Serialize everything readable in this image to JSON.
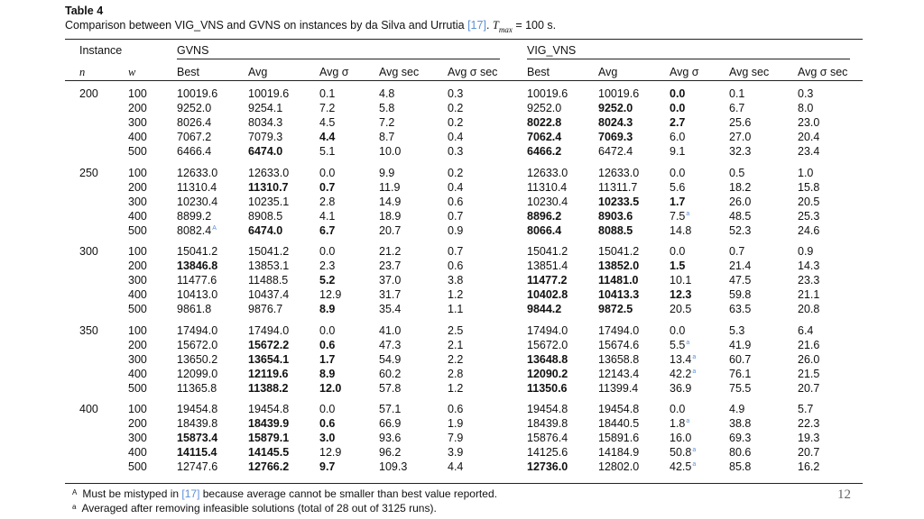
{
  "caption": {
    "label": "Table 4",
    "text_before_ref": "Comparison between VIG_VNS and GVNS on instances by da Silva and Urrutia ",
    "ref": "[17]",
    "text_after_ref": ". ",
    "tmax_symbol": "T",
    "tmax_sub": "max",
    "tmax_value": " = 100 s."
  },
  "headers": {
    "instance": "Instance",
    "gvns": "GVNS",
    "vig_vns": "VIG_VNS",
    "n": "n",
    "w": "w",
    "best": "Best",
    "avg": "Avg",
    "avg_sigma": "Avg σ",
    "avg_sec": "Avg sec",
    "avg_sigma_sec": "Avg σ sec"
  },
  "groups": [
    {
      "n": "200",
      "rows": [
        {
          "w": "100",
          "gb": "10019.6",
          "ga": "10019.6",
          "gs": "0.1",
          "gt": "4.8",
          "gst": "0.3",
          "vb": "10019.6",
          "va": "10019.6",
          "vs": "0.0",
          "vt": "0.1",
          "vst": "0.3",
          "bold": [
            "vs"
          ]
        },
        {
          "w": "200",
          "gb": "9252.0",
          "ga": "9254.1",
          "gs": "7.2",
          "gt": "5.8",
          "gst": "0.2",
          "vb": "9252.0",
          "va": "9252.0",
          "vs": "0.0",
          "vt": "6.7",
          "vst": "8.0",
          "bold": [
            "va",
            "vs"
          ]
        },
        {
          "w": "300",
          "gb": "8026.4",
          "ga": "8034.3",
          "gs": "4.5",
          "gt": "7.2",
          "gst": "0.2",
          "vb": "8022.8",
          "va": "8024.3",
          "vs": "2.7",
          "vt": "25.6",
          "vst": "23.0",
          "bold": [
            "vb",
            "va",
            "vs"
          ]
        },
        {
          "w": "400",
          "gb": "7067.2",
          "ga": "7079.3",
          "gs": "4.4",
          "gt": "8.7",
          "gst": "0.4",
          "vb": "7062.4",
          "va": "7069.3",
          "vs": "6.0",
          "vt": "27.0",
          "vst": "20.4",
          "bold": [
            "gs",
            "vb",
            "va"
          ]
        },
        {
          "w": "500",
          "gb": "6466.4",
          "ga": "6474.0",
          "gs": "5.1",
          "gt": "10.0",
          "gst": "0.3",
          "vb": "6466.2",
          "va": "6472.4",
          "vs": "9.1",
          "vt": "32.3",
          "vst": "23.4",
          "bold": [
            "ga",
            "vb"
          ]
        }
      ]
    },
    {
      "n": "250",
      "rows": [
        {
          "w": "100",
          "gb": "12633.0",
          "ga": "12633.0",
          "gs": "0.0",
          "gt": "9.9",
          "gst": "0.2",
          "vb": "12633.0",
          "va": "12633.0",
          "vs": "0.0",
          "vt": "0.5",
          "vst": "1.0",
          "bold": []
        },
        {
          "w": "200",
          "gb": "11310.4",
          "ga": "11310.7",
          "gs": "0.7",
          "gt": "11.9",
          "gst": "0.4",
          "vb": "11310.4",
          "va": "11311.7",
          "vs": "5.6",
          "vt": "18.2",
          "vst": "15.8",
          "bold": [
            "ga",
            "gs"
          ]
        },
        {
          "w": "300",
          "gb": "10230.4",
          "ga": "10235.1",
          "gs": "2.8",
          "gt": "14.9",
          "gst": "0.6",
          "vb": "10230.4",
          "va": "10233.5",
          "vs": "1.7",
          "vt": "26.0",
          "vst": "20.5",
          "bold": [
            "va",
            "vs"
          ]
        },
        {
          "w": "400",
          "gb": "8899.2",
          "ga": "8908.5",
          "gs": "4.1",
          "gt": "18.9",
          "gst": "0.7",
          "vb": "8896.2",
          "va": "8903.6",
          "vs": "7.5",
          "vt": "48.5",
          "vst": "25.3",
          "bold": [
            "vb",
            "va"
          ],
          "mark": {
            "vs": "a"
          }
        },
        {
          "w": "500",
          "gb": "8082.4",
          "ga": "6474.0",
          "gs": "6.7",
          "gt": "20.7",
          "gst": "0.9",
          "vb": "8066.4",
          "va": "8088.5",
          "vs": "14.8",
          "vt": "52.3",
          "vst": "24.6",
          "bold": [
            "ga",
            "gs",
            "vb",
            "va"
          ],
          "mark": {
            "gb": "A"
          }
        }
      ]
    },
    {
      "n": "300",
      "rows": [
        {
          "w": "100",
          "gb": "15041.2",
          "ga": "15041.2",
          "gs": "0.0",
          "gt": "21.2",
          "gst": "0.7",
          "vb": "15041.2",
          "va": "15041.2",
          "vs": "0.0",
          "vt": "0.7",
          "vst": "0.9",
          "bold": []
        },
        {
          "w": "200",
          "gb": "13846.8",
          "ga": "13853.1",
          "gs": "2.3",
          "gt": "23.7",
          "gst": "0.6",
          "vb": "13851.4",
          "va": "13852.0",
          "vs": "1.5",
          "vt": "21.4",
          "vst": "14.3",
          "bold": [
            "gb",
            "va",
            "vs"
          ]
        },
        {
          "w": "300",
          "gb": "11477.6",
          "ga": "11488.5",
          "gs": "5.2",
          "gt": "37.0",
          "gst": "3.8",
          "vb": "11477.2",
          "va": "11481.0",
          "vs": "10.1",
          "vt": "47.5",
          "vst": "23.3",
          "bold": [
            "gs",
            "vb",
            "va"
          ]
        },
        {
          "w": "400",
          "gb": "10413.0",
          "ga": "10437.4",
          "gs": "12.9",
          "gt": "31.7",
          "gst": "1.2",
          "vb": "10402.8",
          "va": "10413.3",
          "vs": "12.3",
          "vt": "59.8",
          "vst": "21.1",
          "bold": [
            "vb",
            "va",
            "vs"
          ]
        },
        {
          "w": "500",
          "gb": "9861.8",
          "ga": "9876.7",
          "gs": "8.9",
          "gt": "35.4",
          "gst": "1.1",
          "vb": "9844.2",
          "va": "9872.5",
          "vs": "20.5",
          "vt": "63.5",
          "vst": "20.8",
          "bold": [
            "gs",
            "vb",
            "va"
          ]
        }
      ]
    },
    {
      "n": "350",
      "rows": [
        {
          "w": "100",
          "gb": "17494.0",
          "ga": "17494.0",
          "gs": "0.0",
          "gt": "41.0",
          "gst": "2.5",
          "vb": "17494.0",
          "va": "17494.0",
          "vs": "0.0",
          "vt": "5.3",
          "vst": "6.4",
          "bold": []
        },
        {
          "w": "200",
          "gb": "15672.0",
          "ga": "15672.2",
          "gs": "0.6",
          "gt": "47.3",
          "gst": "2.1",
          "vb": "15672.0",
          "va": "15674.6",
          "vs": "5.5",
          "vt": "41.9",
          "vst": "21.6",
          "bold": [
            "ga",
            "gs"
          ],
          "mark": {
            "vs": "a"
          }
        },
        {
          "w": "300",
          "gb": "13650.2",
          "ga": "13654.1",
          "gs": "1.7",
          "gt": "54.9",
          "gst": "2.2",
          "vb": "13648.8",
          "va": "13658.8",
          "vs": "13.4",
          "vt": "60.7",
          "vst": "26.0",
          "bold": [
            "ga",
            "gs",
            "vb"
          ],
          "mark": {
            "vs": "a"
          }
        },
        {
          "w": "400",
          "gb": "12099.0",
          "ga": "12119.6",
          "gs": "8.9",
          "gt": "60.2",
          "gst": "2.8",
          "vb": "12090.2",
          "va": "12143.4",
          "vs": "42.2",
          "vt": "76.1",
          "vst": "21.5",
          "bold": [
            "ga",
            "gs",
            "vb"
          ],
          "mark": {
            "vs": "a"
          }
        },
        {
          "w": "500",
          "gb": "11365.8",
          "ga": "11388.2",
          "gs": "12.0",
          "gt": "57.8",
          "gst": "1.2",
          "vb": "11350.6",
          "va": "11399.4",
          "vs": "36.9",
          "vt": "75.5",
          "vst": "20.7",
          "bold": [
            "ga",
            "gs",
            "vb"
          ]
        }
      ]
    },
    {
      "n": "400",
      "rows": [
        {
          "w": "100",
          "gb": "19454.8",
          "ga": "19454.8",
          "gs": "0.0",
          "gt": "57.1",
          "gst": "0.6",
          "vb": "19454.8",
          "va": "19454.8",
          "vs": "0.0",
          "vt": "4.9",
          "vst": "5.7",
          "bold": []
        },
        {
          "w": "200",
          "gb": "18439.8",
          "ga": "18439.9",
          "gs": "0.6",
          "gt": "66.9",
          "gst": "1.9",
          "vb": "18439.8",
          "va": "18440.5",
          "vs": "1.8",
          "vt": "38.8",
          "vst": "22.3",
          "bold": [
            "ga",
            "gs"
          ],
          "mark": {
            "vs": "a"
          }
        },
        {
          "w": "300",
          "gb": "15873.4",
          "ga": "15879.1",
          "gs": "3.0",
          "gt": "93.6",
          "gst": "7.9",
          "vb": "15876.4",
          "va": "15891.6",
          "vs": "16.0",
          "vt": "69.3",
          "vst": "19.3",
          "bold": [
            "gb",
            "ga",
            "gs"
          ]
        },
        {
          "w": "400",
          "gb": "14115.4",
          "ga": "14145.5",
          "gs": "12.9",
          "gt": "96.2",
          "gst": "3.9",
          "vb": "14125.6",
          "va": "14184.9",
          "vs": "50.8",
          "vt": "80.6",
          "vst": "20.7",
          "bold": [
            "gb",
            "ga"
          ],
          "mark": {
            "vs": "a"
          }
        },
        {
          "w": "500",
          "gb": "12747.6",
          "ga": "12766.2",
          "gs": "9.7",
          "gt": "109.3",
          "gst": "4.4",
          "vb": "12736.0",
          "va": "12802.0",
          "vs": "42.5",
          "vt": "85.8",
          "vst": "16.2",
          "bold": [
            "ga",
            "gs",
            "vb"
          ],
          "mark": {
            "vs": "a"
          }
        }
      ]
    }
  ],
  "footnotes": [
    {
      "mark": "A",
      "before": "Must be mistyped in ",
      "ref": "[17]",
      "after": " because average cannot be smaller than best value reported."
    },
    {
      "mark": "a",
      "before": "Averaged after removing infeasible solutions (total of 28 out of 3125 runs).",
      "ref": "",
      "after": ""
    }
  ],
  "page_number": "12"
}
